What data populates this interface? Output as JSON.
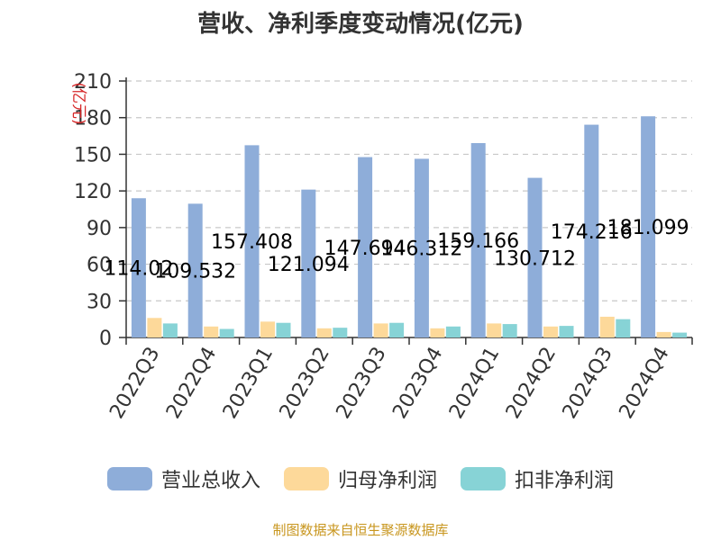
{
  "chart_data": {
    "type": "bar",
    "title": "营收、净利季度变动情况(亿元)",
    "ylabel": "(亿元)",
    "xlabel": "",
    "ylim": [
      0,
      210
    ],
    "yticks": [
      0,
      30,
      60,
      90,
      120,
      150,
      180,
      210
    ],
    "grid": true,
    "legend_position": "bottom",
    "categories": [
      "2022Q3",
      "2022Q4",
      "2023Q1",
      "2023Q2",
      "2023Q3",
      "2023Q4",
      "2024Q1",
      "2024Q2",
      "2024Q3",
      "2024Q4"
    ],
    "series": [
      {
        "name": "营业总收入",
        "color": "#8eadd9",
        "values": [
          114.02,
          109.532,
          157.408,
          121.094,
          147.694,
          146.312,
          159.166,
          130.712,
          174.216,
          181.099
        ],
        "data_labels": [
          "114.02",
          "109.532",
          "157.408",
          "121.094",
          "147.694",
          "146.312",
          "159.166",
          "130.712",
          "174.216",
          "181.099"
        ]
      },
      {
        "name": "归母净利润",
        "color": "#fdd99a",
        "values": [
          16,
          9,
          13,
          7.5,
          11.5,
          7.5,
          11.5,
          9,
          17,
          4.5
        ]
      },
      {
        "name": "扣非净利润",
        "color": "#87d3d6",
        "values": [
          11.5,
          7,
          12,
          8,
          12,
          9,
          11,
          9.5,
          15,
          4
        ]
      }
    ],
    "source": "制图数据来自恒生聚源数据库"
  }
}
